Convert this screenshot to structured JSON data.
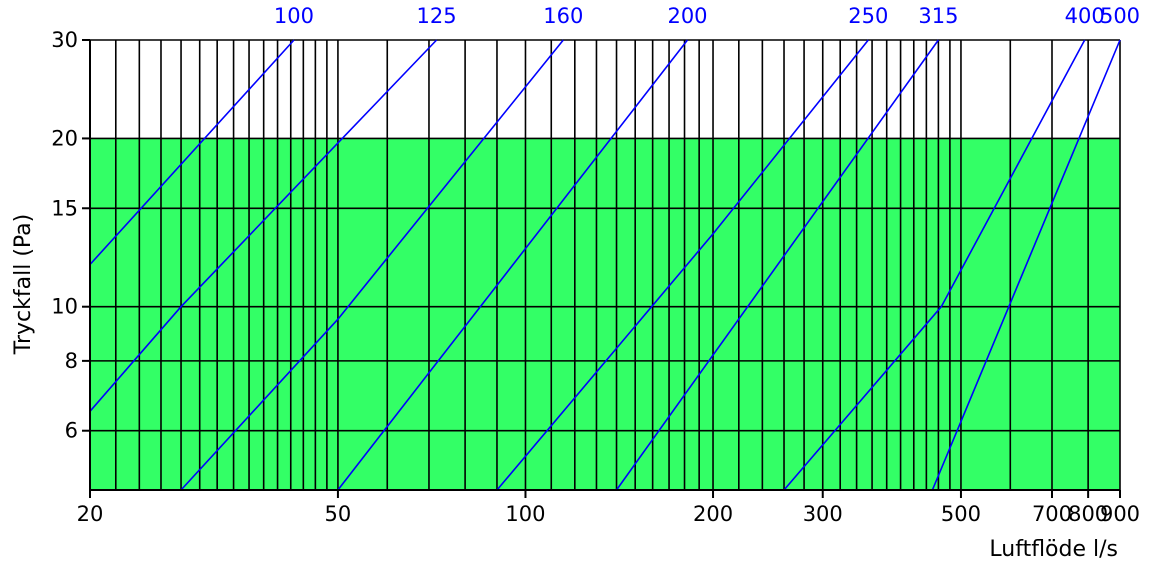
{
  "chart_data": {
    "type": "line",
    "title": "",
    "xlabel": "Luftflöde l/s",
    "ylabel": "Tryckfall (Pa)",
    "x_scale": "log",
    "y_scale": "log",
    "xlim": [
      20,
      900
    ],
    "ylim": [
      4.7,
      30
    ],
    "grid": true,
    "colors": {
      "line": "#0000ff",
      "band": "#33ff66",
      "grid": "#000000"
    },
    "highlight_band": {
      "y_from": 4.7,
      "y_to": 20
    },
    "x_ticks": [
      {
        "value": 20,
        "label": "20"
      },
      {
        "value": 50,
        "label": "50"
      },
      {
        "value": 100,
        "label": "100"
      },
      {
        "value": 200,
        "label": "200"
      },
      {
        "value": 300,
        "label": "300"
      },
      {
        "value": 500,
        "label": "500"
      },
      {
        "value": 700,
        "label": "700"
      },
      {
        "value": 800,
        "label": "800"
      },
      {
        "value": 900,
        "label": "900"
      }
    ],
    "y_ticks": [
      {
        "value": 6,
        "label": "6"
      },
      {
        "value": 8,
        "label": "8"
      },
      {
        "value": 10,
        "label": "10"
      },
      {
        "value": 15,
        "label": "15"
      },
      {
        "value": 20,
        "label": "20"
      },
      {
        "value": 30,
        "label": "30"
      }
    ],
    "x_gridlines": [
      20,
      22,
      24,
      26,
      28,
      30,
      32,
      34,
      36,
      38,
      40,
      42,
      44,
      46,
      48,
      50,
      60,
      70,
      80,
      90,
      100,
      110,
      120,
      130,
      140,
      150,
      160,
      170,
      180,
      190,
      200,
      220,
      240,
      260,
      280,
      300,
      320,
      340,
      360,
      380,
      400,
      420,
      440,
      460,
      480,
      500,
      600,
      700,
      800,
      900
    ],
    "y_gridlines": [
      6,
      8,
      10,
      15,
      20,
      30
    ],
    "series": [
      {
        "name": "100",
        "points": [
          [
            20,
            11.9
          ],
          [
            42.5,
            30
          ]
        ]
      },
      {
        "name": "125",
        "points": [
          [
            20,
            6.5
          ],
          [
            28,
            10
          ],
          [
            72,
            30
          ]
        ]
      },
      {
        "name": "160",
        "points": [
          [
            28,
            4.7
          ],
          [
            50,
            9.5
          ],
          [
            115,
            30
          ]
        ]
      },
      {
        "name": "200",
        "points": [
          [
            50,
            4.7
          ],
          [
            182,
            30
          ]
        ]
      },
      {
        "name": "250",
        "points": [
          [
            90,
            4.7
          ],
          [
            200,
            13.5
          ],
          [
            355,
            30
          ]
        ]
      },
      {
        "name": "315",
        "points": [
          [
            140,
            4.7
          ],
          [
            460,
            30
          ]
        ]
      },
      {
        "name": "400",
        "points": [
          [
            260,
            4.7
          ],
          [
            465,
            10
          ],
          [
            790,
            30
          ]
        ]
      },
      {
        "name": "500",
        "points": [
          [
            450,
            4.7
          ],
          [
            900,
            30
          ]
        ]
      }
    ]
  }
}
